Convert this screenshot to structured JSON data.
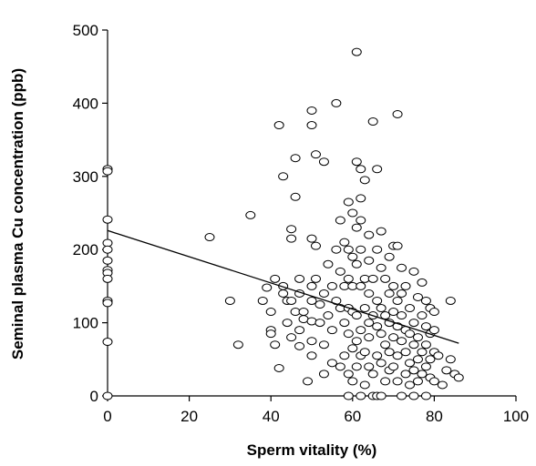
{
  "chart_data": {
    "type": "scatter",
    "title": "",
    "xlabel": "Sperm vitality (%)",
    "ylabel": "Seminal plasma Cu concentration (ppb)",
    "xlim": [
      0,
      100
    ],
    "ylim": [
      0,
      500
    ],
    "xticks": [
      "0",
      "20",
      "40",
      "60",
      "80",
      "100"
    ],
    "yticks": [
      "0",
      "100",
      "200",
      "300",
      "400",
      "500"
    ],
    "grid": false,
    "legend": "none",
    "colors": {
      "marker_edge": "#000000",
      "marker_fill": "#ffffff",
      "axis": "#000000",
      "trendline": "#000000"
    },
    "trendline": {
      "x": [
        0,
        86
      ],
      "y": [
        226,
        72
      ]
    },
    "points": [
      [
        0,
        310
      ],
      [
        0,
        307
      ],
      [
        0,
        241
      ],
      [
        0,
        209
      ],
      [
        0,
        200
      ],
      [
        0,
        185
      ],
      [
        0,
        172
      ],
      [
        0,
        168
      ],
      [
        0,
        160
      ],
      [
        0,
        130
      ],
      [
        0,
        127
      ],
      [
        0,
        74
      ],
      [
        0,
        0
      ],
      [
        25,
        217
      ],
      [
        30,
        130
      ],
      [
        32,
        70
      ],
      [
        35,
        247
      ],
      [
        38,
        130
      ],
      [
        39,
        148
      ],
      [
        40,
        115
      ],
      [
        40,
        90
      ],
      [
        40,
        85
      ],
      [
        41,
        160
      ],
      [
        41,
        70
      ],
      [
        42,
        370
      ],
      [
        42,
        38
      ],
      [
        43,
        300
      ],
      [
        43,
        150
      ],
      [
        43,
        140
      ],
      [
        44,
        130
      ],
      [
        44,
        100
      ],
      [
        45,
        228
      ],
      [
        45,
        215
      ],
      [
        45,
        130
      ],
      [
        45,
        80
      ],
      [
        46,
        325
      ],
      [
        46,
        272
      ],
      [
        46,
        115
      ],
      [
        47,
        160
      ],
      [
        47,
        140
      ],
      [
        47,
        90
      ],
      [
        47,
        68
      ],
      [
        48,
        115
      ],
      [
        48,
        105
      ],
      [
        49,
        20
      ],
      [
        50,
        390
      ],
      [
        50,
        370
      ],
      [
        50,
        215
      ],
      [
        50,
        150
      ],
      [
        50,
        130
      ],
      [
        50,
        75
      ],
      [
        50,
        55
      ],
      [
        50,
        102
      ],
      [
        51,
        330
      ],
      [
        51,
        205
      ],
      [
        51,
        160
      ],
      [
        52,
        125
      ],
      [
        52,
        100
      ],
      [
        53,
        320
      ],
      [
        53,
        140
      ],
      [
        53,
        70
      ],
      [
        53,
        30
      ],
      [
        54,
        180
      ],
      [
        54,
        110
      ],
      [
        55,
        150
      ],
      [
        55,
        90
      ],
      [
        55,
        45
      ],
      [
        56,
        400
      ],
      [
        56,
        200
      ],
      [
        56,
        130
      ],
      [
        57,
        240
      ],
      [
        57,
        170
      ],
      [
        57,
        120
      ],
      [
        57,
        40
      ],
      [
        58,
        210
      ],
      [
        58,
        150
      ],
      [
        58,
        100
      ],
      [
        58,
        55
      ],
      [
        59,
        265
      ],
      [
        59,
        200
      ],
      [
        59,
        160
      ],
      [
        59,
        120
      ],
      [
        59,
        85
      ],
      [
        59,
        30
      ],
      [
        59,
        0
      ],
      [
        60,
        250
      ],
      [
        60,
        190
      ],
      [
        60,
        150
      ],
      [
        60,
        115
      ],
      [
        60,
        65
      ],
      [
        60,
        20
      ],
      [
        61,
        470
      ],
      [
        61,
        320
      ],
      [
        61,
        230
      ],
      [
        61,
        180
      ],
      [
        61,
        110
      ],
      [
        61,
        75
      ],
      [
        61,
        40
      ],
      [
        62,
        310
      ],
      [
        62,
        270
      ],
      [
        62,
        240
      ],
      [
        62,
        200
      ],
      [
        62,
        150
      ],
      [
        62,
        90
      ],
      [
        62,
        55
      ],
      [
        62,
        0
      ],
      [
        63,
        295
      ],
      [
        63,
        160
      ],
      [
        63,
        120
      ],
      [
        63,
        60
      ],
      [
        63,
        15
      ],
      [
        64,
        220
      ],
      [
        64,
        185
      ],
      [
        64,
        140
      ],
      [
        64,
        100
      ],
      [
        64,
        80
      ],
      [
        64,
        40
      ],
      [
        65,
        375
      ],
      [
        65,
        160
      ],
      [
        65,
        110
      ],
      [
        65,
        30
      ],
      [
        65,
        0
      ],
      [
        66,
        310
      ],
      [
        66,
        200
      ],
      [
        66,
        130
      ],
      [
        66,
        95
      ],
      [
        66,
        55
      ],
      [
        66,
        0
      ],
      [
        67,
        225
      ],
      [
        67,
        175
      ],
      [
        67,
        120
      ],
      [
        67,
        85
      ],
      [
        67,
        45
      ],
      [
        67,
        0
      ],
      [
        68,
        160
      ],
      [
        68,
        110
      ],
      [
        68,
        70
      ],
      [
        68,
        20
      ],
      [
        69,
        190
      ],
      [
        69,
        140
      ],
      [
        69,
        100
      ],
      [
        69,
        60
      ],
      [
        69,
        35
      ],
      [
        70,
        205
      ],
      [
        70,
        150
      ],
      [
        70,
        115
      ],
      [
        70,
        80
      ],
      [
        70,
        40
      ],
      [
        71,
        385
      ],
      [
        71,
        205
      ],
      [
        71,
        130
      ],
      [
        71,
        95
      ],
      [
        71,
        55
      ],
      [
        71,
        20
      ],
      [
        72,
        175
      ],
      [
        72,
        140
      ],
      [
        72,
        110
      ],
      [
        72,
        75
      ],
      [
        72,
        0
      ],
      [
        73,
        150
      ],
      [
        73,
        90
      ],
      [
        73,
        60
      ],
      [
        73,
        30
      ],
      [
        74,
        120
      ],
      [
        74,
        85
      ],
      [
        74,
        45
      ],
      [
        74,
        15
      ],
      [
        75,
        170
      ],
      [
        75,
        100
      ],
      [
        75,
        70
      ],
      [
        75,
        35
      ],
      [
        75,
        0
      ],
      [
        76,
        135
      ],
      [
        76,
        80
      ],
      [
        76,
        50
      ],
      [
        76,
        20
      ],
      [
        77,
        155
      ],
      [
        77,
        110
      ],
      [
        77,
        60
      ],
      [
        77,
        30
      ],
      [
        78,
        130
      ],
      [
        78,
        95
      ],
      [
        78,
        70
      ],
      [
        78,
        40
      ],
      [
        78,
        0
      ],
      [
        79,
        120
      ],
      [
        79,
        85
      ],
      [
        79,
        50
      ],
      [
        79,
        25
      ],
      [
        80,
        115
      ],
      [
        80,
        90
      ],
      [
        80,
        60
      ],
      [
        80,
        20
      ],
      [
        81,
        55
      ],
      [
        82,
        15
      ],
      [
        83,
        35
      ],
      [
        84,
        130
      ],
      [
        84,
        50
      ],
      [
        85,
        30
      ],
      [
        86,
        25
      ]
    ]
  }
}
